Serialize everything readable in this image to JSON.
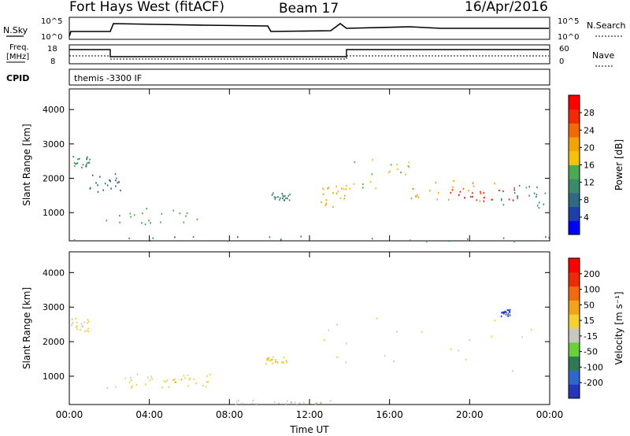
{
  "header": {
    "station": "Fort Hays West (fitACF)",
    "beam": "Beam 17",
    "date": "16/Apr/2016"
  },
  "panels": {
    "nsky_label": "N.Sky",
    "nsearch_label": "N.Search",
    "freq_label_1": "Freq.",
    "freq_label_2": "[MHz]",
    "nave_label": "Nave",
    "cpid_label": "CPID",
    "cpid_value": "themis -3300 IF",
    "left_ticks_noise": [
      "10^5",
      "10^0"
    ],
    "right_ticks_noise": [
      "10^5",
      "10^0"
    ],
    "left_ticks_freq": [
      "18",
      "8"
    ],
    "right_ticks_nave": [
      "60",
      "0"
    ]
  },
  "colors": {
    "power_scale": [
      "#0000ff",
      "#1e3fa6",
      "#2f6a85",
      "#3d8a6a",
      "#4aaa52",
      "#f2c20c",
      "#f2a30a",
      "#f26a06",
      "#ee2b04",
      "#ff0000"
    ],
    "velocity_scale": [
      "#2437b8",
      "#2f68c8",
      "#2f7a55",
      "#68d03a",
      "#c8c8c0",
      "#f2d232",
      "#f2a31e",
      "#f26a10",
      "#ee2b08",
      "#ff0000"
    ]
  },
  "chart_data": [
    {
      "type": "heatmap",
      "name": "power",
      "xlabel": "Time UT",
      "ylabel": "Slant Range [km]",
      "colorbar_label": "Power [dB]",
      "colorbar_ticks": [
        "28",
        "24",
        "20",
        "16",
        "12",
        "8",
        "4"
      ],
      "colorbar_range": [
        0,
        32
      ],
      "x_range_hours": [
        0,
        24
      ],
      "y_range_km": [
        180,
        4600
      ],
      "y_ticks": [
        "1000",
        "2000",
        "3000",
        "4000"
      ],
      "x_ticks": [
        "00:00",
        "04:00",
        "08:00",
        "12:00",
        "16:00",
        "20:00",
        "00:00"
      ],
      "echo_regions": [
        {
          "t": [
            0.0,
            1.0
          ],
          "r": [
            2300,
            2700
          ],
          "v": 12
        },
        {
          "t": [
            1.0,
            2.6
          ],
          "r": [
            1550,
            2150
          ],
          "v": 8
        },
        {
          "t": [
            1.8,
            7.5
          ],
          "r": [
            680,
            1150
          ],
          "v": 14
        },
        {
          "t": [
            9.8,
            11.0
          ],
          "r": [
            1380,
            1600
          ],
          "v": 10
        },
        {
          "t": [
            12.5,
            13.8
          ],
          "r": [
            1150,
            1850
          ],
          "v": 20
        },
        {
          "t": [
            13.8,
            17.0
          ],
          "r": [
            1700,
            2700
          ],
          "v": 16
        },
        {
          "t": [
            17.0,
            21.5
          ],
          "r": [
            1350,
            2000
          ],
          "v": 22
        },
        {
          "t": [
            19.0,
            22.5
          ],
          "r": [
            1300,
            1700
          ],
          "v": 28
        },
        {
          "t": [
            21.5,
            23.8
          ],
          "r": [
            1150,
            1900
          ],
          "v": 12
        },
        {
          "t": [
            0.0,
            24.0
          ],
          "r": [
            180,
            330
          ],
          "v": 10
        }
      ]
    },
    {
      "type": "heatmap",
      "name": "velocity",
      "xlabel": "Time UT",
      "ylabel": "Slant Range [km]",
      "colorbar_label": "Velocity [m s⁻¹]",
      "colorbar_ticks": [
        "200",
        "100",
        "50",
        "15",
        "-15",
        "-50",
        "-100",
        "-200"
      ],
      "colorbar_range": [
        -250,
        250
      ],
      "x_range_hours": [
        0,
        24
      ],
      "y_range_km": [
        180,
        4600
      ],
      "y_ticks": [
        "1000",
        "2000",
        "3000",
        "4000"
      ],
      "x_ticks": [
        "00:00",
        "04:00",
        "08:00",
        "12:00",
        "16:00",
        "20:00",
        "00:00"
      ],
      "echo_regions": [
        {
          "t": [
            0.0,
            1.0
          ],
          "r": [
            2300,
            2700
          ],
          "v": 0
        },
        {
          "t": [
            1.8,
            7.5
          ],
          "r": [
            680,
            1150
          ],
          "v": 0
        },
        {
          "t": [
            2.5,
            7.2
          ],
          "r": [
            700,
            1000
          ],
          "v": 40
        },
        {
          "t": [
            9.8,
            11.0
          ],
          "r": [
            1380,
            1600
          ],
          "v": 40
        },
        {
          "t": [
            12.5,
            23.8
          ],
          "r": [
            1150,
            2700
          ],
          "v": 0
        },
        {
          "t": [
            21.5,
            22.0
          ],
          "r": [
            2750,
            2950
          ],
          "v": -220
        },
        {
          "t": [
            8.0,
            13.5
          ],
          "r": [
            180,
            330
          ],
          "v": -40
        }
      ]
    }
  ]
}
